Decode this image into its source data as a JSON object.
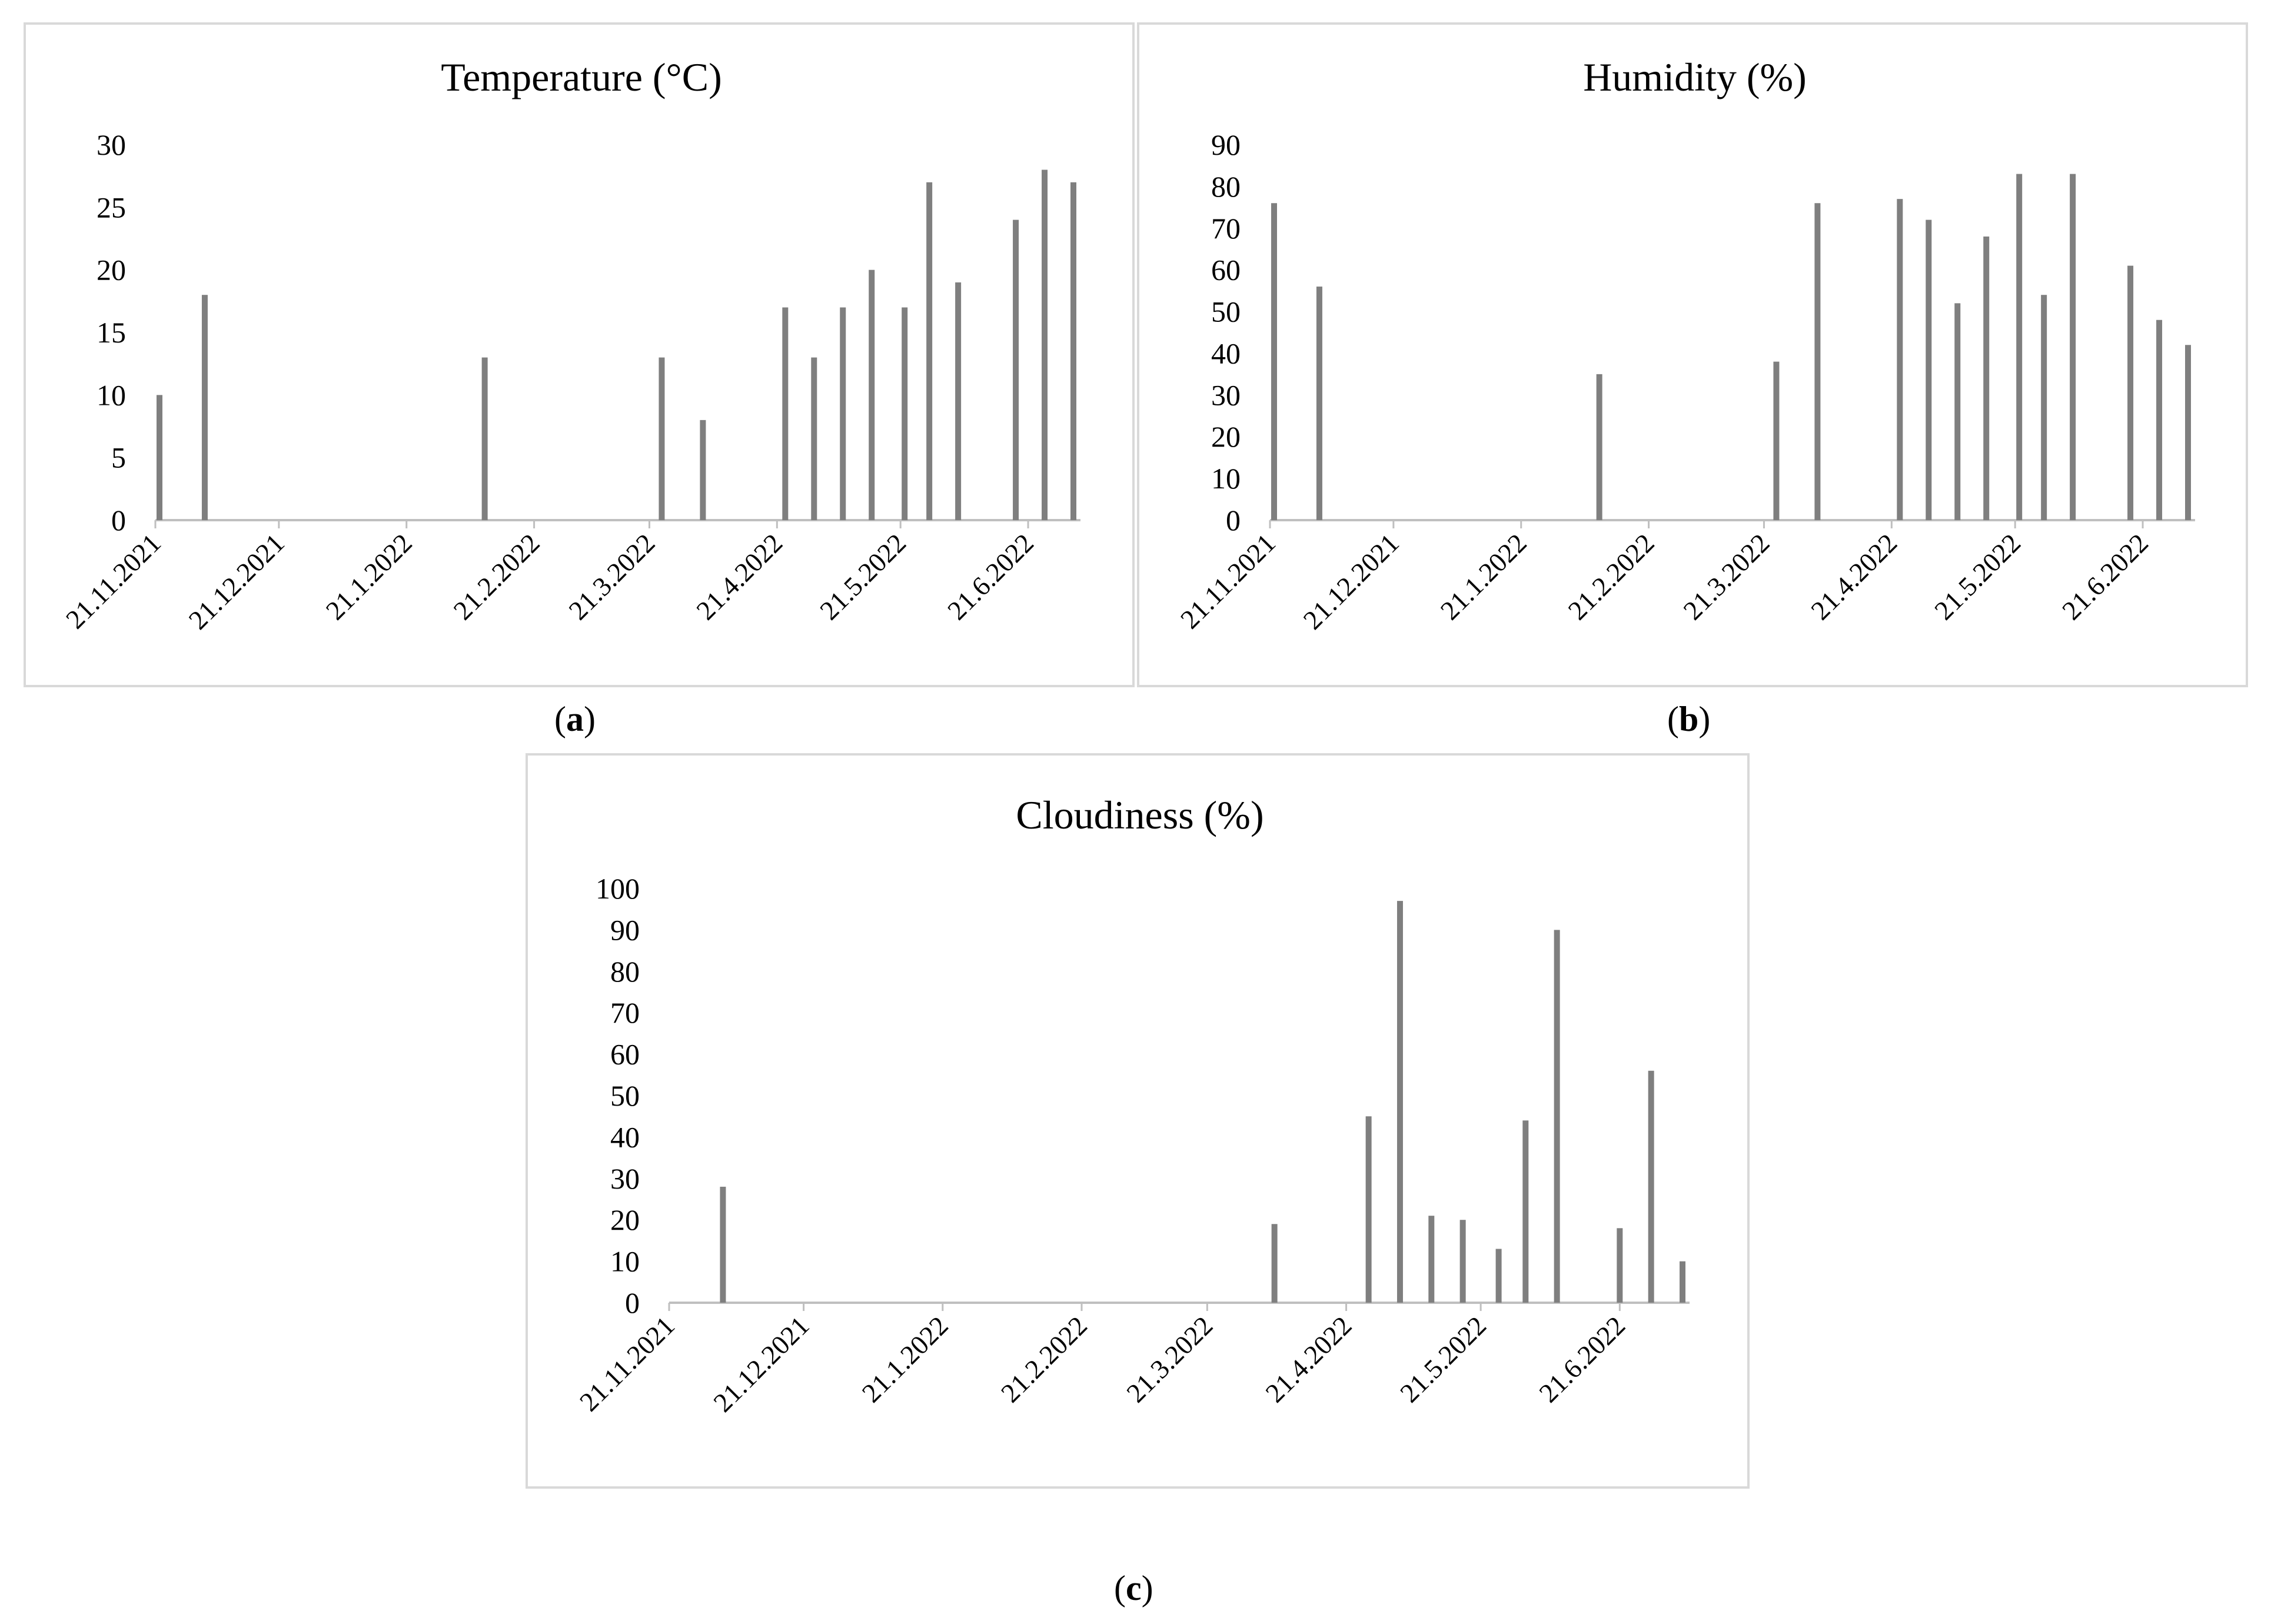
{
  "captions": {
    "a": "a",
    "b": "b",
    "c": "c"
  },
  "chart_data": [
    {
      "type": "bar",
      "title": "Temperature (°C)",
      "xlabel": "",
      "ylabel": "",
      "ylim": [
        0,
        30
      ],
      "yticks": [
        0,
        5,
        10,
        15,
        20,
        25,
        30
      ],
      "xticks": [
        {
          "day": 0,
          "label": "21.11.2021"
        },
        {
          "day": 30,
          "label": "21.12.2021"
        },
        {
          "day": 61,
          "label": "21.1.2022"
        },
        {
          "day": 92,
          "label": "21.2.2022"
        },
        {
          "day": 120,
          "label": "21.3.2022"
        },
        {
          "day": 151,
          "label": "21.4.2022"
        },
        {
          "day": 181,
          "label": "21.5.2022"
        },
        {
          "day": 212,
          "label": "21.6.2022"
        }
      ],
      "xdomain": [
        0,
        223
      ],
      "x": [
        1,
        12,
        80,
        123,
        133,
        153,
        160,
        167,
        174,
        182,
        188,
        195,
        209,
        216,
        223
      ],
      "values": [
        10,
        18,
        13,
        13,
        8,
        17,
        13,
        17,
        20,
        17,
        27,
        19,
        24,
        28,
        27
      ]
    },
    {
      "type": "bar",
      "title": "Humidity (%)",
      "xlabel": "",
      "ylabel": "",
      "ylim": [
        0,
        90
      ],
      "yticks": [
        0,
        10,
        20,
        30,
        40,
        50,
        60,
        70,
        80,
        90
      ],
      "xticks": [
        {
          "day": 0,
          "label": "21.11.2021"
        },
        {
          "day": 30,
          "label": "21.12.2021"
        },
        {
          "day": 61,
          "label": "21.1.2022"
        },
        {
          "day": 92,
          "label": "21.2.2022"
        },
        {
          "day": 120,
          "label": "21.3.2022"
        },
        {
          "day": 151,
          "label": "21.4.2022"
        },
        {
          "day": 181,
          "label": "21.5.2022"
        },
        {
          "day": 212,
          "label": "21.6.2022"
        }
      ],
      "xdomain": [
        0,
        223
      ],
      "x": [
        1,
        12,
        80,
        123,
        133,
        153,
        160,
        167,
        174,
        182,
        188,
        195,
        209,
        216,
        223
      ],
      "values": [
        76,
        56,
        35,
        38,
        76,
        77,
        72,
        52,
        68,
        83,
        54,
        83,
        61,
        48,
        42
      ]
    },
    {
      "type": "bar",
      "title": "Cloudiness (%)",
      "xlabel": "",
      "ylabel": "",
      "ylim": [
        0,
        100
      ],
      "yticks": [
        0,
        10,
        20,
        30,
        40,
        50,
        60,
        70,
        80,
        90,
        100
      ],
      "xticks": [
        {
          "day": 0,
          "label": "21.11.2021"
        },
        {
          "day": 30,
          "label": "21.12.2021"
        },
        {
          "day": 61,
          "label": "21.1.2022"
        },
        {
          "day": 92,
          "label": "21.2.2022"
        },
        {
          "day": 120,
          "label": "21.3.2022"
        },
        {
          "day": 151,
          "label": "21.4.2022"
        },
        {
          "day": 181,
          "label": "21.5.2022"
        },
        {
          "day": 212,
          "label": "21.6.2022"
        }
      ],
      "xdomain": [
        0,
        226
      ],
      "x": [
        12,
        135,
        156,
        163,
        170,
        177,
        185,
        191,
        198,
        212,
        219,
        226
      ],
      "values": [
        28,
        19,
        45,
        97,
        21,
        20,
        13,
        44,
        90,
        18,
        56,
        10
      ]
    }
  ]
}
